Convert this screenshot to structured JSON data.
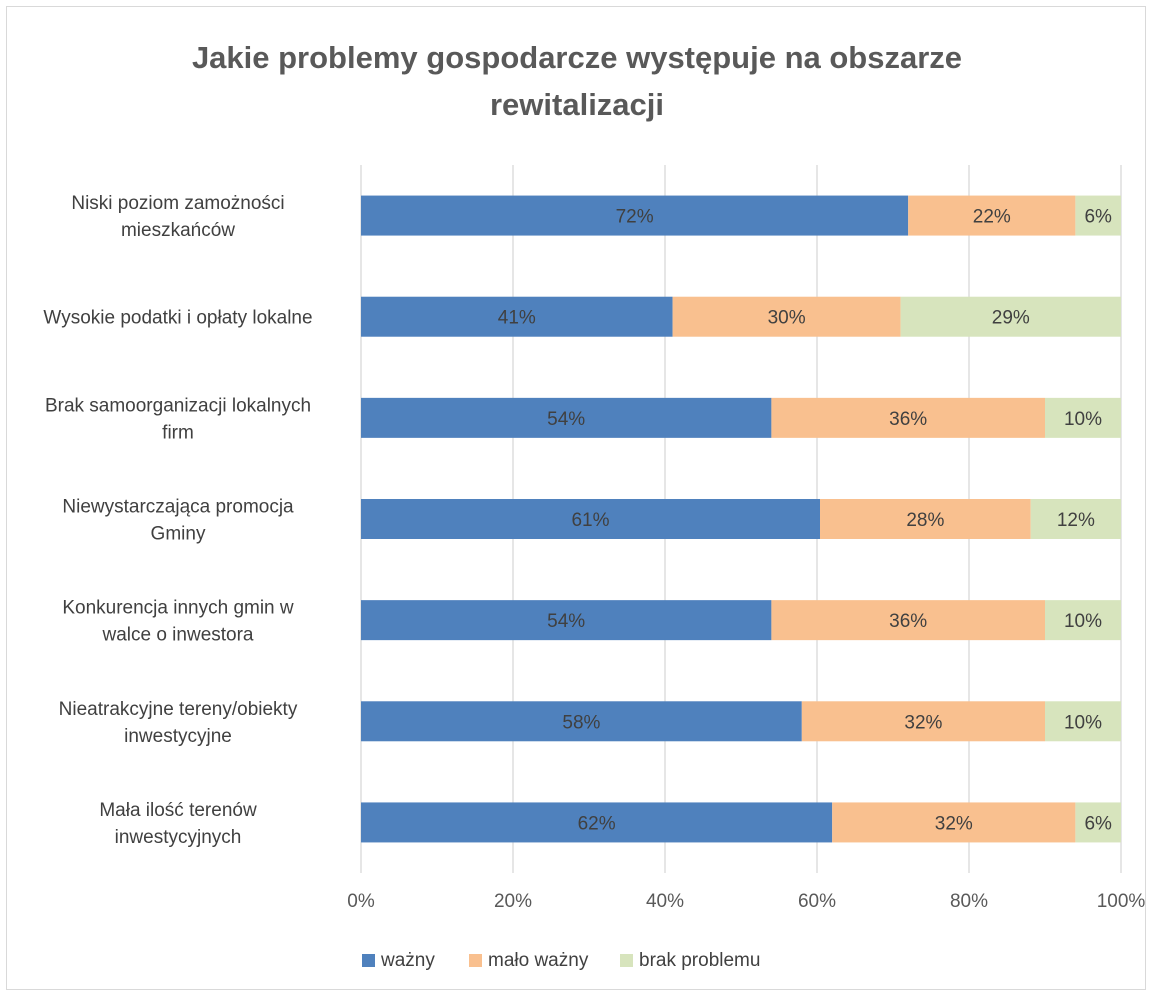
{
  "chart_data": {
    "type": "bar",
    "orientation": "horizontal",
    "stacked": "percent",
    "title_lines": [
      "Jakie problemy gospodarcze występuje na obszarze",
      "rewitalizacji"
    ],
    "categories": [
      [
        "Niski poziom zamożności",
        "mieszkańców"
      ],
      [
        "Wysokie podatki i opłaty lokalne"
      ],
      [
        "Brak samoorganizacji lokalnych",
        "firm"
      ],
      [
        "Niewystarczająca promocja",
        "Gminy"
      ],
      [
        "Konkurencja innych gmin w",
        "walce o inwestora"
      ],
      [
        "Nieatrakcyjne tereny/obiekty",
        "inwestycyjne"
      ],
      [
        "Mała ilość terenów",
        "inwestycyjnych"
      ]
    ],
    "series": [
      {
        "name": "ważny",
        "color": "#4f81bd",
        "values": [
          72,
          41,
          54,
          61,
          54,
          58,
          62
        ],
        "labels": [
          "72%",
          "41%",
          "54%",
          "61%",
          "54%",
          "58%",
          "62%"
        ]
      },
      {
        "name": "mało ważny",
        "color": "#f9c08f",
        "values": [
          22,
          30,
          36,
          28,
          36,
          32,
          32
        ],
        "labels": [
          "22%",
          "30%",
          "36%",
          "28%",
          "36%",
          "32%",
          "32%"
        ]
      },
      {
        "name": "brak problemu",
        "color": "#d7e4bd",
        "values": [
          6,
          29,
          10,
          12,
          10,
          10,
          6
        ],
        "labels": [
          "6%",
          "29%",
          "10%",
          "12%",
          "10%",
          "10%",
          "6%"
        ]
      }
    ],
    "xlim": [
      0,
      100
    ],
    "x_ticks": [
      0,
      20,
      40,
      60,
      80,
      100
    ],
    "x_tick_labels": [
      "0%",
      "20%",
      "40%",
      "60%",
      "80%",
      "100%"
    ],
    "grid": true,
    "legend_position": "bottom"
  }
}
